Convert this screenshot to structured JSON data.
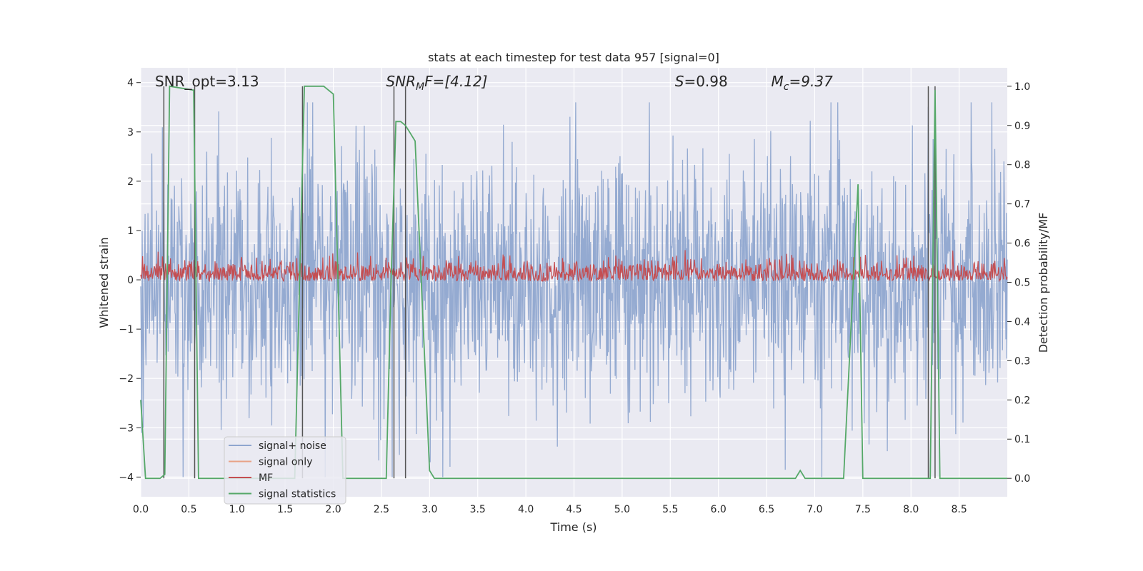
{
  "chart_data": {
    "type": "line",
    "title": "stats at each timestep for test data 957 [signal=0]",
    "xlabel": "Time (s)",
    "ylabel": "Whitened strain",
    "y2label": "Detection probability/MF",
    "xlim": [
      0.0,
      9.0
    ],
    "ylim": [
      -4.4,
      4.3
    ],
    "y2lim": [
      -0.047,
      1.047
    ],
    "x_ticks": [
      "0.0",
      "0.5",
      "1.0",
      "1.5",
      "2.0",
      "2.5",
      "3.0",
      "3.5",
      "4.0",
      "4.5",
      "5.0",
      "5.5",
      "6.0",
      "6.5",
      "7.0",
      "7.5",
      "8.0",
      "8.5"
    ],
    "y_ticks": [
      "4",
      "3",
      "2",
      "1",
      "0",
      "−1",
      "−2",
      "−3",
      "−4"
    ],
    "y2_ticks": [
      "1.0",
      "0.9",
      "0.8",
      "0.7",
      "0.6",
      "0.5",
      "0.4",
      "0.3",
      "0.2",
      "0.1",
      "0.0"
    ],
    "grid": true,
    "legend_position": "lower-left",
    "annotations": [
      {
        "text": "SNR_opt=3.13",
        "x": 0.2
      },
      {
        "text": "SNR",
        "sub": "M",
        "suffix": "F=[4.12]",
        "x": 2.6
      },
      {
        "text": "S",
        "suffix": "=0.98",
        "x": 5.6
      },
      {
        "text": "M",
        "sub": "c",
        "suffix": "=9.37",
        "x": 6.6
      }
    ],
    "series": [
      {
        "name": "signal+ noise",
        "color": "#8fa6cf",
        "axis": "left",
        "description_range": [
          -4.0,
          3.6
        ]
      },
      {
        "name": "signal only",
        "color": "#e8a386",
        "axis": "left"
      },
      {
        "name": "MF",
        "color": "#c44e52",
        "axis": "right",
        "range": [
          0.5,
          0.6
        ]
      },
      {
        "name": "signal statistics",
        "color": "#55a868",
        "axis": "right",
        "x": [
          0.0,
          0.05,
          0.1,
          0.15,
          0.2,
          0.25,
          0.3,
          0.55,
          0.6,
          0.65,
          0.7,
          1.6,
          1.7,
          1.75,
          1.9,
          2.0,
          2.1,
          2.55,
          2.6,
          2.65,
          2.7,
          2.75,
          2.8,
          2.85,
          3.0,
          3.05,
          3.1,
          3.5,
          4.0,
          5.0,
          6.0,
          6.8,
          6.85,
          6.9,
          7.3,
          7.45,
          7.5,
          7.7,
          8.2,
          8.25,
          8.3,
          8.4,
          8.5,
          9.0
        ],
        "y": [
          0.2,
          0.0,
          0.0,
          0.0,
          0.0,
          0.01,
          1.0,
          0.99,
          0.0,
          0.0,
          0.0,
          0.0,
          1.0,
          1.0,
          1.0,
          0.98,
          0.0,
          0.0,
          0.5,
          0.91,
          0.91,
          0.9,
          0.88,
          0.86,
          0.02,
          0.0,
          0.0,
          0.0,
          0.0,
          0.0,
          0.0,
          0.0,
          0.02,
          0.0,
          0.0,
          0.75,
          0.0,
          0.0,
          0.0,
          0.99,
          0.0,
          0.0,
          0.0,
          0.0
        ]
      }
    ],
    "vlines_x": [
      0.24,
      0.56,
      1.68,
      2.63,
      2.75,
      8.18,
      8.25
    ]
  }
}
